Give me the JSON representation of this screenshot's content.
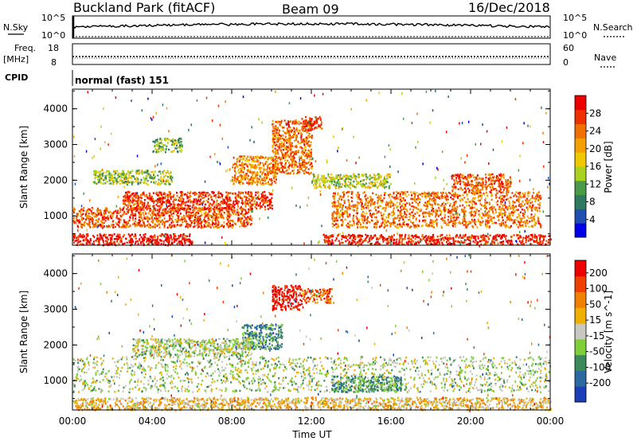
{
  "header": {
    "station": "Buckland Park (fitACF)",
    "beam": "Beam 09",
    "date": "16/Dec/2018"
  },
  "noise_panel": {
    "left_label": "N.Sky",
    "right_label": "N.Search",
    "left_ticks": [
      "10^5",
      "10^0"
    ],
    "right_ticks": [
      "10^5",
      "10^0"
    ]
  },
  "freq_panel": {
    "left_label": "Freq.",
    "left_unit": "[MHz]",
    "right_label": "Nave",
    "left_ticks": [
      "18",
      "8"
    ],
    "right_ticks": [
      "60",
      "0"
    ]
  },
  "cpid": {
    "label": "CPID",
    "value": "normal (fast) 151"
  },
  "axes": {
    "ylabel": "Slant Range [km]",
    "xlabel": "Time UT",
    "yticks": [
      "1000",
      "2000",
      "3000",
      "4000"
    ],
    "xticks": [
      "00:00",
      "04:00",
      "08:00",
      "12:00",
      "16:00",
      "20:00",
      "00:00"
    ]
  },
  "chart_data": [
    {
      "type": "heatmap",
      "quantity": "Power",
      "colorbar_label": "Power [dB]",
      "colorbar_ticks": [
        "4",
        "8",
        "12",
        "16",
        "20",
        "24",
        "28"
      ],
      "colorbar_colors": [
        "#0000e8",
        "#1f4fb0",
        "#2d7a60",
        "#4a9a4a",
        "#aad21e",
        "#f0c800",
        "#f4a000",
        "#f07000",
        "#f03000",
        "#ee0000"
      ],
      "x_range_hours": [
        0,
        24
      ],
      "y_range_km": [
        180,
        4550
      ],
      "regions": [
        {
          "t0": 0.0,
          "t1": 6.0,
          "r0": 200,
          "r1": 520,
          "level": 0.95
        },
        {
          "t0": 0.0,
          "t1": 9.0,
          "r0": 700,
          "r1": 1250,
          "level": 0.8
        },
        {
          "t0": 2.5,
          "t1": 10.0,
          "r0": 1200,
          "r1": 1700,
          "level": 0.85
        },
        {
          "t0": 4.0,
          "t1": 5.5,
          "r0": 2800,
          "r1": 3200,
          "level": 0.4
        },
        {
          "t0": 1.0,
          "t1": 5.0,
          "r0": 1900,
          "r1": 2300,
          "level": 0.45
        },
        {
          "t0": 8.0,
          "t1": 10.2,
          "r0": 1900,
          "r1": 2700,
          "level": 0.7
        },
        {
          "t0": 10.0,
          "t1": 12.0,
          "r0": 2200,
          "r1": 3700,
          "level": 0.75
        },
        {
          "t0": 11.5,
          "t1": 12.5,
          "r0": 3400,
          "r1": 3800,
          "level": 0.9
        },
        {
          "t0": 13.0,
          "t1": 23.5,
          "r0": 700,
          "r1": 1700,
          "level": 0.75
        },
        {
          "t0": 19.0,
          "t1": 22.0,
          "r0": 1700,
          "r1": 2200,
          "level": 0.8
        },
        {
          "t0": 12.5,
          "t1": 24.0,
          "r0": 220,
          "r1": 500,
          "level": 0.9
        },
        {
          "t0": 12.0,
          "t1": 16.0,
          "r0": 1800,
          "r1": 2200,
          "level": 0.5
        }
      ]
    },
    {
      "type": "heatmap",
      "quantity": "Velocity",
      "colorbar_label": "Velocity [m s^-1]",
      "colorbar_ticks": [
        "200",
        "100",
        "50",
        "15",
        "-15",
        "-50",
        "-100",
        "-200"
      ],
      "colorbar_colors": [
        "#1c3fb8",
        "#2a6aa0",
        "#3c8a5a",
        "#7ecf3a",
        "#c8c8c0",
        "#f0b000",
        "#f08000",
        "#f04000",
        "#ee0000"
      ],
      "x_range_hours": [
        0,
        24
      ],
      "y_range_km": [
        180,
        4550
      ],
      "regions": [
        {
          "t0": 0.0,
          "t1": 24.0,
          "r0": 700,
          "r1": 1700,
          "level": 0.45
        },
        {
          "t0": 13.0,
          "t1": 16.5,
          "r0": 700,
          "r1": 1150,
          "level": 0.3
        },
        {
          "t0": 10.0,
          "t1": 11.5,
          "r0": 3000,
          "r1": 3700,
          "level": 0.95
        },
        {
          "t0": 11.5,
          "t1": 13.0,
          "r0": 3200,
          "r1": 3600,
          "level": 0.8
        },
        {
          "t0": 0.0,
          "t1": 24.0,
          "r0": 200,
          "r1": 550,
          "level": 0.6
        },
        {
          "t0": 8.5,
          "t1": 10.5,
          "r0": 1900,
          "r1": 2600,
          "level": 0.25
        },
        {
          "t0": 3.0,
          "t1": 9.0,
          "r0": 1700,
          "r1": 2200,
          "level": 0.45
        }
      ]
    }
  ]
}
